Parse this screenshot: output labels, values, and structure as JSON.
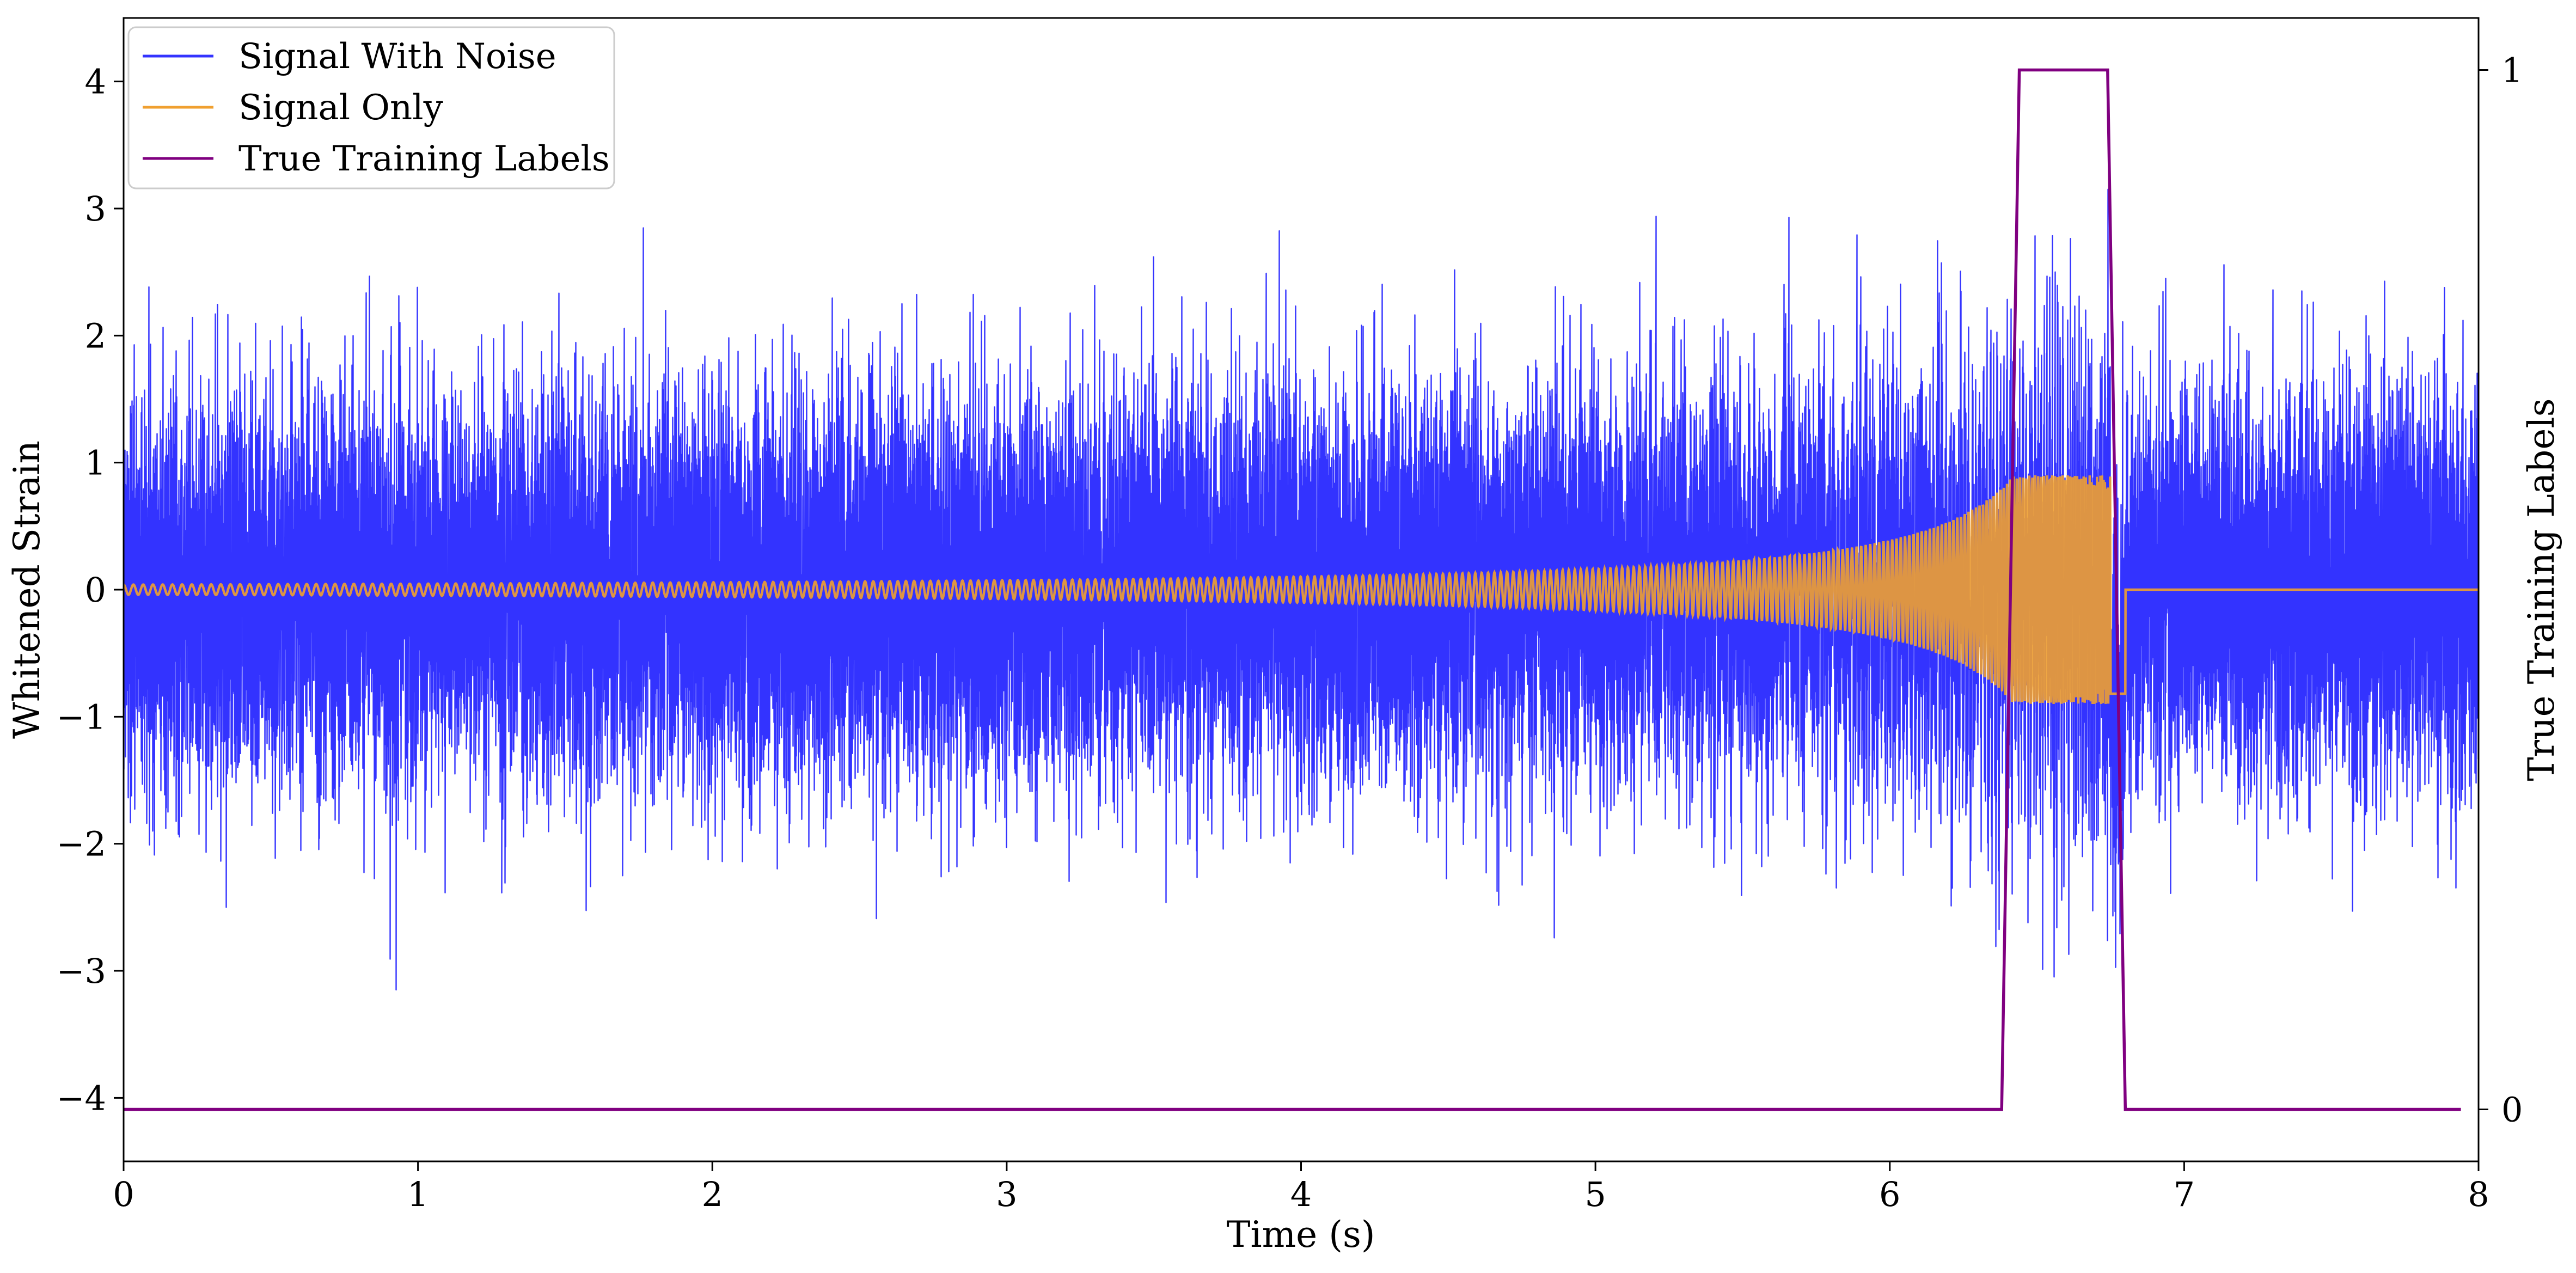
{
  "chart_data": {
    "type": "line",
    "xlabel": "Time (s)",
    "ylabel": "Whitened Strain",
    "y2label": "True Training Labels",
    "xlim": [
      0,
      8
    ],
    "ylim": [
      -4.5,
      4.5
    ],
    "y2lim": [
      -0.05,
      1.05
    ],
    "xticks": [
      0,
      1,
      2,
      3,
      4,
      5,
      6,
      7,
      8
    ],
    "xtick_labels": [
      "0",
      "1",
      "2",
      "3",
      "4",
      "5",
      "6",
      "7",
      "8"
    ],
    "yticks": [
      -4,
      -3,
      -2,
      -1,
      0,
      1,
      2,
      3,
      4
    ],
    "ytick_labels": [
      "−4",
      "−3",
      "−2",
      "−1",
      "0",
      "1",
      "2",
      "3",
      "4"
    ],
    "y2ticks": [
      0,
      1
    ],
    "y2tick_labels": [
      "0",
      "1"
    ],
    "grid": false,
    "legend_position": "top-left",
    "series": [
      {
        "name": "Signal With Noise",
        "color": "#3333ff",
        "axis": "left",
        "kind": "noise",
        "sample_rate_hz": 4096,
        "noise_std": 0.75,
        "noise_peak_range": [
          -4.0,
          4.0
        ]
      },
      {
        "name": "Signal Only",
        "color": "#f0a030",
        "axis": "left",
        "kind": "chirp",
        "amplitude_start": 0.04,
        "amplitude_peak": 0.9,
        "peak_time": 6.75,
        "end_time": 6.8
      },
      {
        "name": "True Training Labels",
        "color": "#800080",
        "axis": "right",
        "kind": "step",
        "x": [
          0,
          6.38,
          6.44,
          6.74,
          6.8,
          7.94
        ],
        "values": [
          0,
          0,
          1,
          1,
          0,
          0
        ]
      }
    ]
  }
}
